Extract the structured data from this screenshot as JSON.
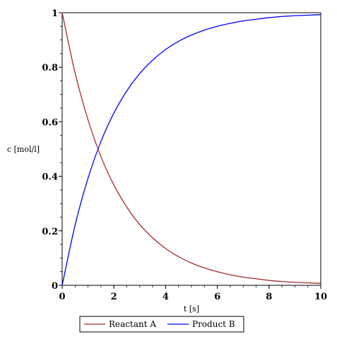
{
  "chart_data": {
    "type": "line",
    "xlabel": "t [s]",
    "ylabel": "c [mol/l]",
    "xlim": [
      0,
      10
    ],
    "ylim": [
      0,
      1
    ],
    "x_ticks": [
      0,
      2,
      4,
      6,
      8,
      10
    ],
    "y_ticks": [
      0,
      0.2,
      0.4,
      0.6,
      0.8,
      1
    ],
    "x_tick_labels": [
      "0",
      "2",
      "4",
      "6",
      "8",
      "10"
    ],
    "y_tick_labels": [
      "0",
      "0.2",
      "0.4",
      "0.6",
      "0.8",
      "1"
    ],
    "grid": false,
    "legend_position": "bottom",
    "x": [
      0,
      0.5,
      1,
      1.5,
      2,
      2.5,
      3,
      3.5,
      4,
      4.5,
      5,
      5.5,
      6,
      6.5,
      7,
      7.5,
      8,
      8.5,
      9,
      9.5,
      10
    ],
    "series": [
      {
        "name": "Reactant A",
        "color": "#a52a2a",
        "values": [
          1.0,
          0.779,
          0.607,
          0.472,
          0.368,
          0.287,
          0.223,
          0.174,
          0.135,
          0.105,
          0.082,
          0.064,
          0.05,
          0.039,
          0.03,
          0.024,
          0.018,
          0.014,
          0.011,
          0.009,
          0.007
        ]
      },
      {
        "name": "Product B",
        "color": "#0000ff",
        "values": [
          0.0,
          0.221,
          0.393,
          0.528,
          0.632,
          0.713,
          0.777,
          0.826,
          0.865,
          0.895,
          0.918,
          0.936,
          0.95,
          0.961,
          0.97,
          0.976,
          0.982,
          0.986,
          0.989,
          0.991,
          0.993
        ]
      }
    ]
  }
}
